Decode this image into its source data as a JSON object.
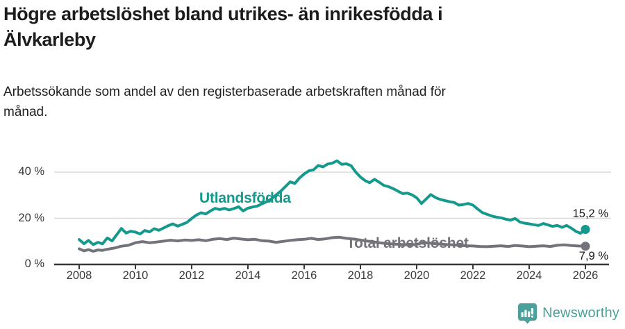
{
  "header": {
    "title_line1": "Högre arbetslöshet bland utrikes- än inrikesfödda i",
    "title_line2": "Älvkarleby",
    "subtitle_line1": "Arbetssökande som andel av den registerbaserade arbetskraften månad för",
    "subtitle_line2": "månad."
  },
  "footer": {
    "brand": "Newsworthy",
    "brand_color": "#4aa09b"
  },
  "colors": {
    "utlandsfodda": "#15998d",
    "total": "#73737b",
    "grid": "#dadada",
    "axis": "#383838",
    "tick_text": "#3a3a3a",
    "value_label": "#1a1a1a"
  },
  "chart_data": {
    "type": "line",
    "title": "Högre arbetslöshet bland utrikes- än inrikesfödda i Älvkarleby",
    "subtitle": "Arbetssökande som andel av den registerbaserade arbetskraften månad för månad.",
    "unit": "%",
    "x_ticks": [
      2008,
      2010,
      2012,
      2014,
      2016,
      2018,
      2020,
      2022,
      2024,
      2026
    ],
    "y_ticks": [
      {
        "value": 0,
        "label": "0 %"
      },
      {
        "value": 20,
        "label": "20 %"
      },
      {
        "value": 40,
        "label": "40 %"
      }
    ],
    "xlim": [
      2007.1,
      2026.9
    ],
    "ylim": [
      0,
      48
    ],
    "grid": "horizontal",
    "legend_position": "inline-labels",
    "series": [
      {
        "name": "Utlandsfödda",
        "end_label": "15,2 %",
        "end_value": 15.2,
        "points": [
          [
            2008.0,
            10.8
          ],
          [
            2008.17,
            9.0
          ],
          [
            2008.33,
            10.4
          ],
          [
            2008.5,
            8.6
          ],
          [
            2008.67,
            9.6
          ],
          [
            2008.83,
            8.9
          ],
          [
            2009.0,
            11.5
          ],
          [
            2009.17,
            10.2
          ],
          [
            2009.33,
            12.8
          ],
          [
            2009.5,
            15.6
          ],
          [
            2009.67,
            13.6
          ],
          [
            2009.83,
            14.4
          ],
          [
            2010.0,
            14.0
          ],
          [
            2010.17,
            13.2
          ],
          [
            2010.33,
            14.7
          ],
          [
            2010.5,
            14.1
          ],
          [
            2010.67,
            15.5
          ],
          [
            2010.83,
            14.8
          ],
          [
            2011.0,
            15.8
          ],
          [
            2011.17,
            16.8
          ],
          [
            2011.33,
            17.6
          ],
          [
            2011.5,
            16.6
          ],
          [
            2011.67,
            17.4
          ],
          [
            2011.83,
            18.2
          ],
          [
            2012.0,
            19.9
          ],
          [
            2012.17,
            21.4
          ],
          [
            2012.33,
            22.4
          ],
          [
            2012.5,
            21.9
          ],
          [
            2012.67,
            23.2
          ],
          [
            2012.83,
            24.3
          ],
          [
            2013.0,
            23.8
          ],
          [
            2013.17,
            24.3
          ],
          [
            2013.33,
            23.6
          ],
          [
            2013.5,
            24.2
          ],
          [
            2013.67,
            25.0
          ],
          [
            2013.83,
            23.2
          ],
          [
            2014.0,
            24.4
          ],
          [
            2014.17,
            24.9
          ],
          [
            2014.33,
            25.3
          ],
          [
            2014.5,
            26.3
          ],
          [
            2014.67,
            27.2
          ],
          [
            2014.83,
            28.4
          ],
          [
            2015.0,
            30.1
          ],
          [
            2015.17,
            31.8
          ],
          [
            2015.33,
            33.7
          ],
          [
            2015.5,
            35.8
          ],
          [
            2015.67,
            35.1
          ],
          [
            2015.83,
            37.4
          ],
          [
            2016.0,
            39.2
          ],
          [
            2016.17,
            40.6
          ],
          [
            2016.33,
            41.0
          ],
          [
            2016.5,
            42.9
          ],
          [
            2016.67,
            42.3
          ],
          [
            2016.83,
            43.5
          ],
          [
            2017.0,
            43.9
          ],
          [
            2017.17,
            44.9
          ],
          [
            2017.33,
            43.4
          ],
          [
            2017.5,
            43.6
          ],
          [
            2017.67,
            42.8
          ],
          [
            2017.83,
            40.1
          ],
          [
            2018.0,
            37.9
          ],
          [
            2018.17,
            36.3
          ],
          [
            2018.33,
            35.4
          ],
          [
            2018.5,
            36.9
          ],
          [
            2018.67,
            35.6
          ],
          [
            2018.83,
            34.3
          ],
          [
            2019.0,
            33.7
          ],
          [
            2019.17,
            32.8
          ],
          [
            2019.33,
            31.8
          ],
          [
            2019.5,
            30.7
          ],
          [
            2019.67,
            30.9
          ],
          [
            2019.83,
            30.2
          ],
          [
            2020.0,
            28.9
          ],
          [
            2020.17,
            26.4
          ],
          [
            2020.33,
            28.3
          ],
          [
            2020.5,
            30.3
          ],
          [
            2020.67,
            29.0
          ],
          [
            2020.83,
            28.2
          ],
          [
            2021.0,
            27.7
          ],
          [
            2021.17,
            27.2
          ],
          [
            2021.33,
            26.9
          ],
          [
            2021.5,
            25.7
          ],
          [
            2021.67,
            26.0
          ],
          [
            2021.83,
            26.4
          ],
          [
            2022.0,
            25.7
          ],
          [
            2022.17,
            24.0
          ],
          [
            2022.33,
            22.5
          ],
          [
            2022.5,
            21.7
          ],
          [
            2022.67,
            21.0
          ],
          [
            2022.83,
            20.5
          ],
          [
            2023.0,
            20.2
          ],
          [
            2023.17,
            19.6
          ],
          [
            2023.33,
            19.2
          ],
          [
            2023.5,
            19.9
          ],
          [
            2023.67,
            18.4
          ],
          [
            2023.83,
            17.9
          ],
          [
            2024.0,
            17.6
          ],
          [
            2024.17,
            17.2
          ],
          [
            2024.33,
            16.9
          ],
          [
            2024.5,
            17.7
          ],
          [
            2024.67,
            17.1
          ],
          [
            2024.83,
            16.5
          ],
          [
            2025.0,
            16.9
          ],
          [
            2025.17,
            16.1
          ],
          [
            2025.33,
            16.9
          ],
          [
            2025.5,
            15.7
          ],
          [
            2025.67,
            14.3
          ],
          [
            2025.83,
            13.5
          ],
          [
            2026.0,
            15.2
          ]
        ]
      },
      {
        "name": "Total arbetslöshet",
        "end_label": "7,9 %",
        "end_value": 7.9,
        "points": [
          [
            2008.0,
            6.8
          ],
          [
            2008.17,
            5.9
          ],
          [
            2008.33,
            6.4
          ],
          [
            2008.5,
            5.7
          ],
          [
            2008.67,
            6.3
          ],
          [
            2008.83,
            6.1
          ],
          [
            2009.0,
            6.6
          ],
          [
            2009.25,
            7.1
          ],
          [
            2009.5,
            7.9
          ],
          [
            2009.75,
            8.3
          ],
          [
            2010.0,
            9.4
          ],
          [
            2010.25,
            9.9
          ],
          [
            2010.5,
            9.4
          ],
          [
            2010.75,
            9.7
          ],
          [
            2011.0,
            10.1
          ],
          [
            2011.25,
            10.5
          ],
          [
            2011.5,
            10.2
          ],
          [
            2011.75,
            10.6
          ],
          [
            2012.0,
            10.4
          ],
          [
            2012.25,
            10.7
          ],
          [
            2012.5,
            10.3
          ],
          [
            2012.75,
            10.9
          ],
          [
            2013.0,
            11.2
          ],
          [
            2013.25,
            10.8
          ],
          [
            2013.5,
            11.4
          ],
          [
            2013.75,
            11.0
          ],
          [
            2014.0,
            10.7
          ],
          [
            2014.25,
            10.9
          ],
          [
            2014.5,
            10.3
          ],
          [
            2014.75,
            10.1
          ],
          [
            2015.0,
            9.6
          ],
          [
            2015.25,
            10.0
          ],
          [
            2015.5,
            10.4
          ],
          [
            2015.75,
            10.7
          ],
          [
            2016.0,
            10.9
          ],
          [
            2016.25,
            11.3
          ],
          [
            2016.5,
            10.8
          ],
          [
            2016.75,
            11.1
          ],
          [
            2017.0,
            11.6
          ],
          [
            2017.25,
            11.8
          ],
          [
            2017.5,
            11.3
          ],
          [
            2017.75,
            11.0
          ],
          [
            2018.0,
            10.6
          ],
          [
            2018.25,
            10.1
          ],
          [
            2018.5,
            9.7
          ],
          [
            2018.75,
            9.3
          ],
          [
            2019.0,
            9.0
          ],
          [
            2019.25,
            8.8
          ],
          [
            2019.5,
            8.6
          ],
          [
            2019.75,
            8.5
          ],
          [
            2020.0,
            8.7
          ],
          [
            2020.25,
            9.5
          ],
          [
            2020.5,
            9.2
          ],
          [
            2020.75,
            8.9
          ],
          [
            2021.0,
            8.7
          ],
          [
            2021.25,
            8.5
          ],
          [
            2021.5,
            8.3
          ],
          [
            2021.75,
            8.1
          ],
          [
            2022.0,
            8.0
          ],
          [
            2022.25,
            7.8
          ],
          [
            2022.5,
            7.7
          ],
          [
            2022.75,
            7.9
          ],
          [
            2023.0,
            8.1
          ],
          [
            2023.25,
            7.8
          ],
          [
            2023.5,
            8.2
          ],
          [
            2023.75,
            8.0
          ],
          [
            2024.0,
            7.7
          ],
          [
            2024.25,
            7.9
          ],
          [
            2024.5,
            8.1
          ],
          [
            2024.75,
            7.8
          ],
          [
            2025.0,
            8.3
          ],
          [
            2025.25,
            8.5
          ],
          [
            2025.5,
            8.2
          ],
          [
            2025.75,
            8.0
          ],
          [
            2026.0,
            7.9
          ]
        ]
      }
    ]
  }
}
